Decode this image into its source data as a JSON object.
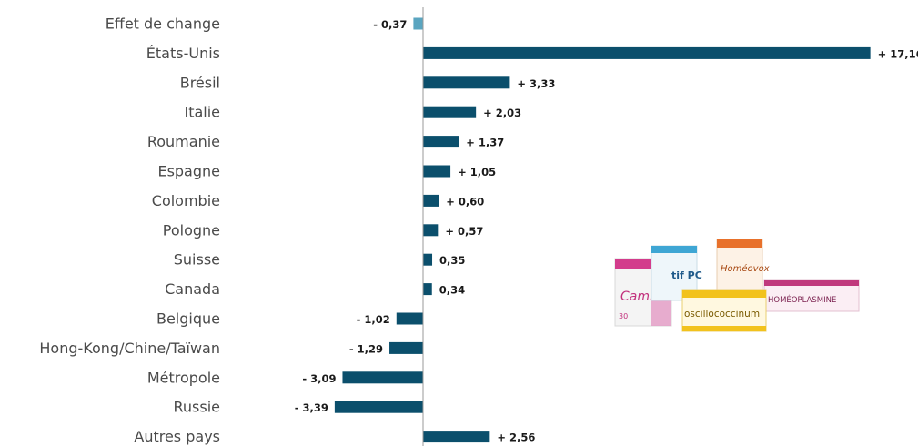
{
  "chart_data": {
    "type": "bar",
    "orientation": "horizontal",
    "categories": [
      "Effet de change",
      "États-Unis",
      "Brésil",
      "Italie",
      "Roumanie",
      "Espagne",
      "Colombie",
      "Pologne",
      "Suisse",
      "Canada",
      "Belgique",
      "Hong-Kong/Chine/Taïwan",
      "Métropole",
      "Russie",
      "Autres pays"
    ],
    "values": [
      -0.37,
      17.16,
      3.33,
      2.03,
      1.37,
      1.05,
      0.6,
      0.57,
      0.35,
      0.34,
      -1.02,
      -1.29,
      -3.09,
      -3.39,
      2.56
    ],
    "value_labels": [
      "- 0,37",
      "+ 17,16",
      "+ 3,33",
      "+ 2,03",
      "+ 1,37",
      "+ 1,05",
      "+ 0,60",
      "+ 0,57",
      "0,35",
      "0,34",
      "- 1,02",
      "- 1,29",
      "- 3,09",
      "- 3,39",
      "+ 2,56"
    ],
    "colors": {
      "bar": "#0b4f6c",
      "first_bar": "#5aa5c0",
      "axis": "#999999"
    },
    "xlim": [
      -3.39,
      17.16
    ],
    "grid": false,
    "title": "",
    "xlabel": "",
    "ylabel": ""
  },
  "products_image": {
    "boxes": [
      "Camilia",
      "tif PC",
      "Homéovox",
      "oscillococcinum",
      "HOMÉOPLASMINE"
    ]
  }
}
